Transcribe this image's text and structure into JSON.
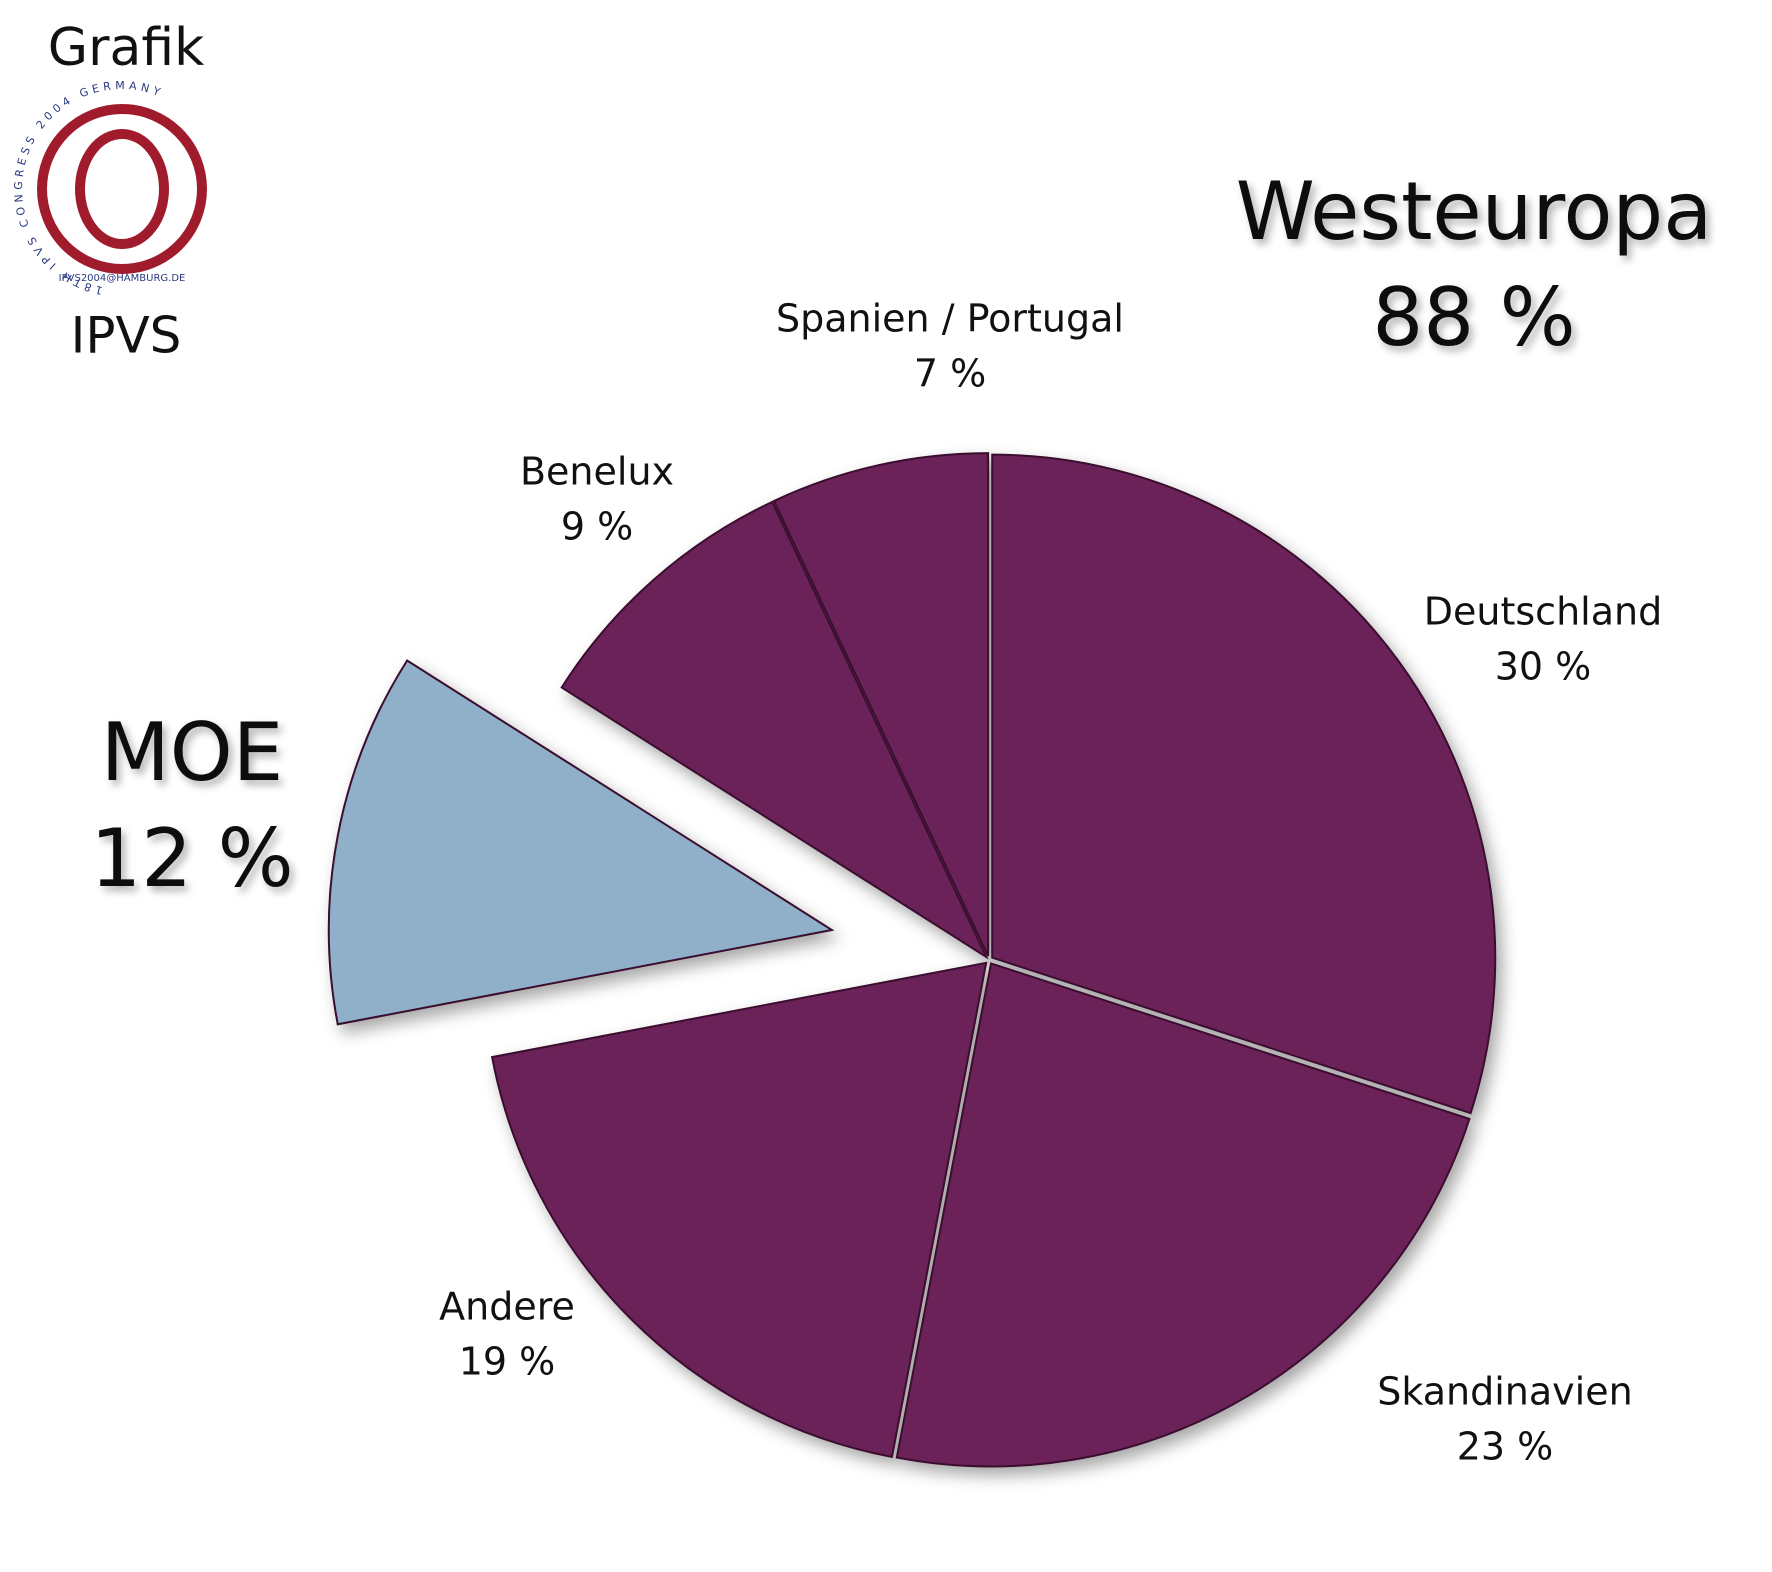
{
  "chart_data": {
    "type": "pie",
    "categories": [
      "Deutschland",
      "Skandinavien",
      "Andere",
      "MOE",
      "Benelux",
      "Spanien / Portugal"
    ],
    "values": [
      30,
      23,
      19,
      12,
      9,
      7
    ],
    "value_labels": [
      "30 %",
      "23 %",
      "19 %",
      "12 %",
      "9 %",
      "7 %"
    ],
    "colors": [
      "#6b2358",
      "#6b2358",
      "#6b2358",
      "#8fb0c8",
      "#6b2358",
      "#6b2358"
    ],
    "exploded": [
      "MOE"
    ],
    "groups": [
      {
        "name": "Westeuropa",
        "value": 88,
        "value_label": "88 %"
      },
      {
        "name": "MOE",
        "value": 12,
        "value_label": "12 %"
      }
    ]
  },
  "logo": {
    "title": "Grafik",
    "ring_text": "18TH IPVS CONGRESS 2004 GERMANY",
    "email": "IPVS2004@HAMBURG.DE",
    "caption": "IPVS"
  }
}
